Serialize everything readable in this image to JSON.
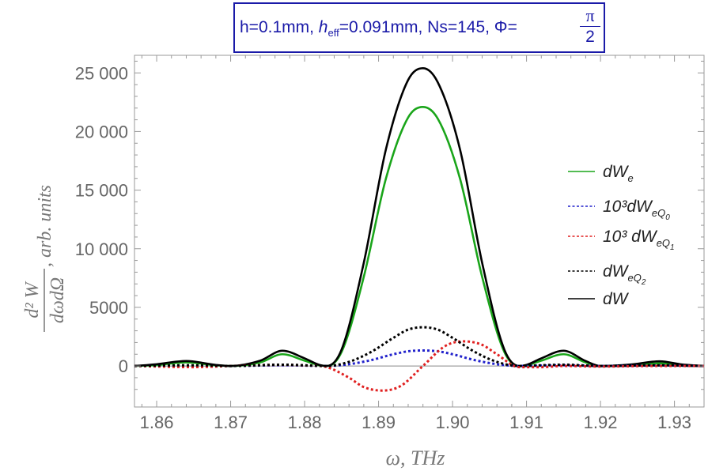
{
  "title": {
    "p1": "h=0.1mm, ",
    "h": "h",
    "sub": "eff",
    "p2": "=0.091mm, Ns=145, Φ=",
    "num": "π",
    "den": "2"
  },
  "ylabel": {
    "num": "d² W",
    "den": "dωdΩ",
    "suffix": ", arb. units"
  },
  "xlabel": "ω, THz",
  "colors": {
    "green": "#1aa51a",
    "blue": "#2222cc",
    "red": "#e02020",
    "black": "#000000",
    "frame": "#999999",
    "ticktext": "#666666"
  },
  "legend": [
    {
      "key": "dWe",
      "text": "dW",
      "sub": "e",
      "subsub": "",
      "style": "solid",
      "color": "#1aa51a"
    },
    {
      "key": "dWeQ0",
      "text": "10³dW",
      "sub": "eQ",
      "subsub": "0",
      "style": "dashed",
      "color": "#2222cc"
    },
    {
      "key": "dWeQ1",
      "text": "10³ dW",
      "sub": "eQ",
      "subsub": "1",
      "style": "dashed",
      "color": "#e02020"
    },
    {
      "key": "dWeQ2",
      "text": "dW",
      "sub": "eQ",
      "subsub": "2",
      "style": "dashed",
      "color": "#000000"
    },
    {
      "key": "dW",
      "text": "dW",
      "sub": "",
      "subsub": "",
      "style": "solid",
      "color": "#000000"
    }
  ],
  "chart_data": {
    "type": "line",
    "xlim": [
      1.857,
      1.934
    ],
    "ylim": [
      -3500,
      26500
    ],
    "xticks": [
      "1.86",
      "1.87",
      "1.88",
      "1.89",
      "1.90",
      "1.91",
      "1.92",
      "1.93"
    ],
    "yticks": [
      "0",
      "5000",
      "10 000",
      "15 000",
      "20 000",
      "25 000"
    ],
    "series": [
      {
        "key": "dWe",
        "style": "solid",
        "color": "#1aa51a",
        "x": [
          1.857,
          1.86,
          1.864,
          1.868,
          1.87,
          1.874,
          1.877,
          1.88,
          1.882,
          1.883,
          1.885,
          1.888,
          1.891,
          1.894,
          1.896,
          1.898,
          1.901,
          1.904,
          1.907,
          1.909,
          1.91,
          1.912,
          1.915,
          1.918,
          1.92,
          1.924,
          1.928,
          1.931,
          1.934
        ],
        "y": [
          0,
          80,
          300,
          60,
          0,
          300,
          1000,
          450,
          60,
          0,
          1200,
          7600,
          16000,
          21200,
          22100,
          21100,
          16000,
          7600,
          1200,
          0,
          60,
          450,
          1000,
          300,
          0,
          80,
          220,
          80,
          0
        ]
      },
      {
        "key": "dW",
        "style": "solid",
        "color": "#000000",
        "x": [
          1.857,
          1.86,
          1.864,
          1.868,
          1.87,
          1.874,
          1.877,
          1.88,
          1.882,
          1.883,
          1.885,
          1.888,
          1.891,
          1.894,
          1.896,
          1.898,
          1.901,
          1.904,
          1.907,
          1.909,
          1.91,
          1.912,
          1.915,
          1.918,
          1.92,
          1.924,
          1.928,
          1.931,
          1.934
        ],
        "y": [
          0,
          150,
          420,
          90,
          0,
          450,
          1300,
          650,
          90,
          0,
          1400,
          8800,
          18500,
          24400,
          25400,
          24200,
          18500,
          8800,
          1400,
          0,
          90,
          650,
          1300,
          420,
          0,
          120,
          400,
          130,
          0
        ]
      },
      {
        "key": "dWeQ0",
        "style": "dashed",
        "color": "#2222cc",
        "x": [
          1.857,
          1.865,
          1.87,
          1.877,
          1.883,
          1.886,
          1.889,
          1.892,
          1.894,
          1.896,
          1.898,
          1.9,
          1.903,
          1.906,
          1.909,
          1.915,
          1.92,
          1.928,
          1.934
        ],
        "y": [
          0,
          40,
          0,
          60,
          0,
          150,
          500,
          1000,
          1250,
          1320,
          1250,
          1000,
          500,
          150,
          0,
          60,
          0,
          40,
          0
        ]
      },
      {
        "key": "dWeQ1",
        "style": "dashed",
        "color": "#e02020",
        "x": [
          1.857,
          1.865,
          1.87,
          1.877,
          1.88,
          1.883,
          1.886,
          1.888,
          1.8905,
          1.893,
          1.896,
          1.899,
          1.9015,
          1.904,
          1.906,
          1.909,
          1.912,
          1.915,
          1.92,
          1.928,
          1.934
        ],
        "y": [
          0,
          -100,
          0,
          100,
          50,
          -100,
          -1000,
          -1800,
          -2100,
          -1700,
          0,
          1700,
          2100,
          1800,
          1000,
          -100,
          -100,
          0,
          -50,
          0,
          0
        ]
      },
      {
        "key": "dWeQ2",
        "style": "dashed",
        "color": "#000000",
        "x": [
          1.857,
          1.865,
          1.87,
          1.877,
          1.883,
          1.886,
          1.889,
          1.892,
          1.894,
          1.896,
          1.898,
          1.9,
          1.903,
          1.906,
          1.909,
          1.915,
          1.92,
          1.928,
          1.934
        ],
        "y": [
          0,
          60,
          0,
          110,
          0,
          350,
          1200,
          2400,
          3100,
          3300,
          3100,
          2400,
          1200,
          350,
          0,
          110,
          0,
          60,
          0
        ]
      }
    ]
  }
}
